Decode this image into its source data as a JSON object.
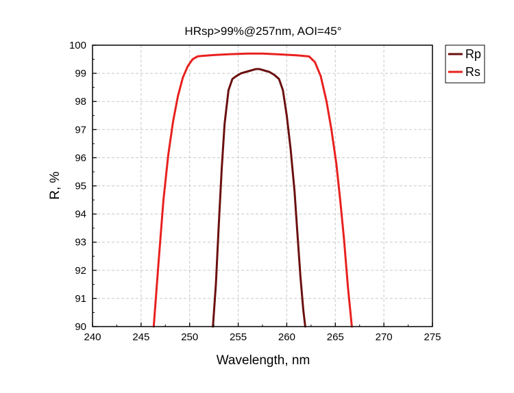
{
  "chart_data": {
    "type": "line",
    "title": "HRsp>99%@257nm, AOI=45°",
    "xlabel": "Wavelength, nm",
    "ylabel": "R, %",
    "xlim": [
      240,
      275
    ],
    "ylim": [
      90,
      100
    ],
    "xticks": [
      240,
      245,
      250,
      255,
      260,
      265,
      270,
      275
    ],
    "yticks": [
      90,
      91,
      92,
      93,
      94,
      95,
      96,
      97,
      98,
      99,
      100
    ],
    "grid": true,
    "legend_position": "top-right outside",
    "series": [
      {
        "name": "Rp",
        "color": "#6b0f0f",
        "x": [
          252.4,
          252.7,
          253.0,
          253.3,
          253.6,
          254.0,
          254.4,
          254.8,
          255.3,
          255.8,
          256.3,
          256.8,
          257.2,
          257.7,
          258.2,
          258.7,
          259.2,
          259.6,
          260.0,
          260.4,
          260.8,
          261.1,
          261.4,
          261.7,
          261.9
        ],
        "y": [
          90.0,
          91.5,
          93.6,
          95.6,
          97.2,
          98.4,
          98.8,
          98.9,
          99.0,
          99.05,
          99.1,
          99.15,
          99.15,
          99.1,
          99.05,
          98.95,
          98.8,
          98.4,
          97.5,
          96.3,
          94.8,
          93.3,
          91.8,
          90.6,
          90.0
        ]
      },
      {
        "name": "Rs",
        "color": "#e8201e",
        "x": [
          246.3,
          246.8,
          247.3,
          247.8,
          248.3,
          248.8,
          249.3,
          249.8,
          250.3,
          250.8,
          251.3,
          252.5,
          254.0,
          256.0,
          257.5,
          259.0,
          261.0,
          262.3,
          262.9,
          263.5,
          264.1,
          264.6,
          265.1,
          265.5,
          265.9,
          266.3,
          266.7
        ],
        "y": [
          90.0,
          92.3,
          94.5,
          96.1,
          97.3,
          98.2,
          98.85,
          99.25,
          99.5,
          99.6,
          99.62,
          99.65,
          99.68,
          99.7,
          99.7,
          99.68,
          99.64,
          99.6,
          99.4,
          98.9,
          98.0,
          97.0,
          95.8,
          94.5,
          93.1,
          91.4,
          90.0
        ]
      }
    ]
  }
}
